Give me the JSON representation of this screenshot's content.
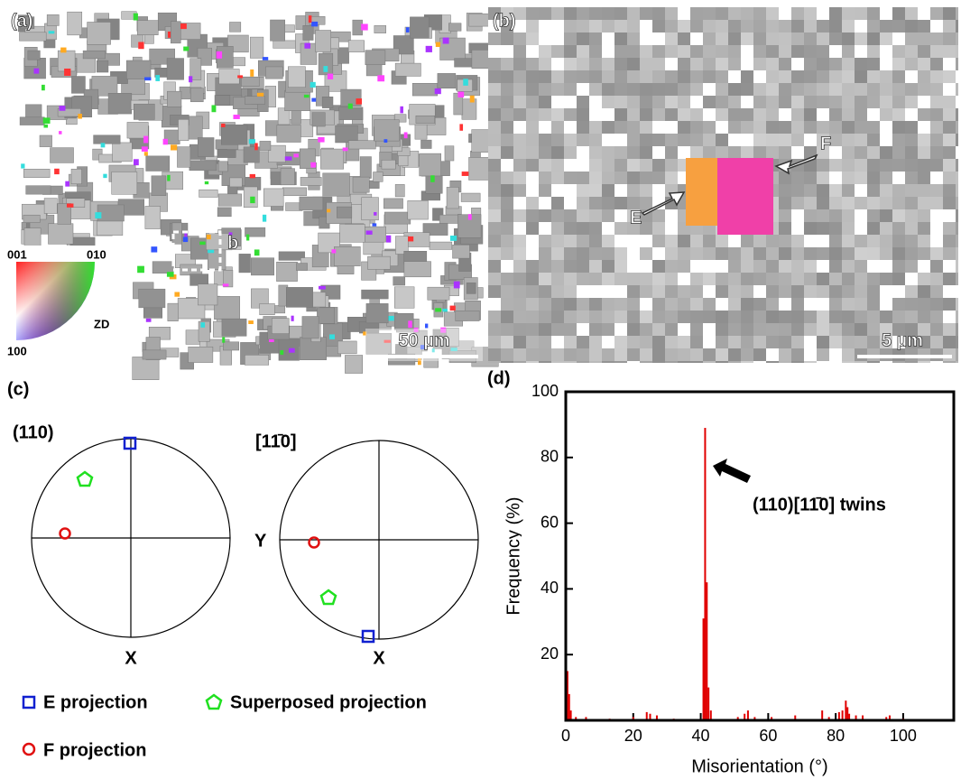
{
  "panels": {
    "a": {
      "label": "(a)",
      "inset_label": "b",
      "scale_bar": "50 µm",
      "ipf_key": {
        "top_left": "001",
        "top_right": "010",
        "bottom": "100",
        "axis": "ZD"
      }
    },
    "b": {
      "label": "(b)",
      "arrow_e": "E",
      "arrow_f": "F",
      "scale_bar": "5 µm"
    },
    "c": {
      "label": "(c)",
      "plane": "(110)",
      "direction": "[11̄0]",
      "axis_y": "Y",
      "axis_x_left": "X",
      "axis_x_right": "X",
      "legend": [
        "E projection",
        "Superposed projection",
        "F projection"
      ]
    },
    "d": {
      "label": "(d)"
    }
  },
  "chart_data": {
    "type": "bar",
    "xlabel": "Misorientation (°)",
    "ylabel": "Frequency (%)",
    "annotation": "(110)[11̄0] twins",
    "x": [
      0.5,
      1,
      1.5,
      3,
      6,
      13,
      20,
      24,
      25,
      27,
      32,
      40.8,
      41.3,
      41.8,
      42.3,
      43,
      51,
      53,
      54,
      56,
      61,
      68,
      76,
      78,
      81,
      82,
      83,
      83.5,
      84,
      86,
      88,
      95,
      96,
      100
    ],
    "values": [
      15,
      8,
      3,
      1,
      1,
      0.5,
      1,
      2.5,
      2,
      1.5,
      0.5,
      31,
      89,
      42,
      10,
      3,
      1,
      2,
      3,
      1,
      1,
      1.5,
      3,
      1,
      2.5,
      3,
      6,
      4,
      2,
      1.5,
      1.5,
      1,
      1.5,
      0.5
    ],
    "color": "#e00000",
    "xlim": [
      0,
      115
    ],
    "ylim": [
      0,
      100
    ],
    "xticks": [
      0,
      20,
      40,
      60,
      80,
      100
    ],
    "yticks": [
      20,
      40,
      60,
      80,
      100
    ]
  }
}
